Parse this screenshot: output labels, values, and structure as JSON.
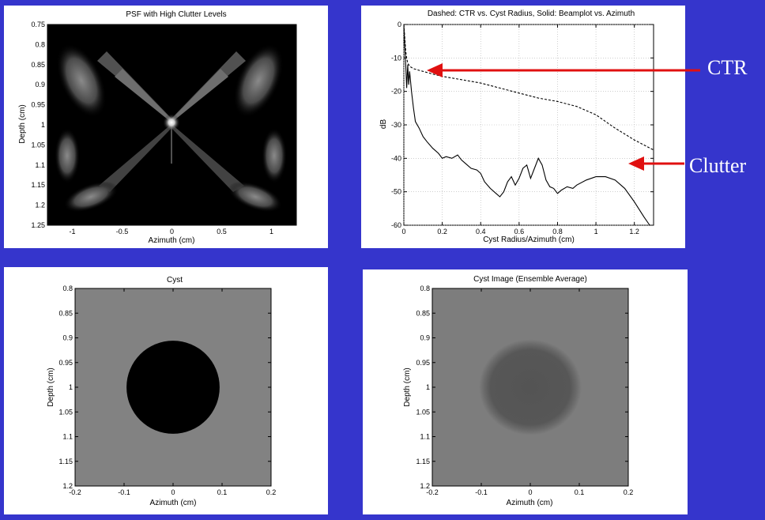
{
  "colors": {
    "slide_background": "#3535cc",
    "annotation_text": "#ffffff",
    "arrow": "#e01010",
    "cyst_background": "#828282",
    "cyst_lesion": "#000000",
    "avg_background": "#7d7d7d",
    "avg_lesion": "#545454",
    "avg_halo": "#6a6a6a"
  },
  "annotations": {
    "ctr_label": "CTR",
    "clutter_label": "Clutter"
  },
  "chart_data": [
    {
      "type": "heatmap",
      "title": "PSF with High Clutter Levels",
      "xlabel": "Azimuth (cm)",
      "ylabel": "Depth (cm)",
      "xlim": [
        -1.25,
        1.25
      ],
      "ylim": [
        0.75,
        1.25
      ],
      "y_reversed": true,
      "xticks": [
        "-1",
        "-0.5",
        "0",
        "0.5",
        "1"
      ],
      "yticks": [
        "0.75",
        "0.8",
        "0.85",
        "0.9",
        "0.95",
        "1",
        "1.05",
        "1.1",
        "1.15",
        "1.2",
        "1.25"
      ],
      "colormap": "gray",
      "peak": {
        "x": 0,
        "y": 1.0
      }
    },
    {
      "type": "line",
      "title": "Dashed: CTR vs. Cyst Radius, Solid: Beamplot vs. Azimuth",
      "xlabel": "Cyst Radius/Azimuth (cm)",
      "ylabel": "dB",
      "xlim": [
        0,
        1.3
      ],
      "ylim": [
        -60,
        0
      ],
      "grid": true,
      "xticks": [
        "0",
        "0.2",
        "0.4",
        "0.6",
        "0.8",
        "1",
        "1.2"
      ],
      "yticks": [
        "0",
        "-10",
        "-20",
        "-30",
        "-40",
        "-50",
        "-60"
      ],
      "series": [
        {
          "style": "dashed",
          "x": [
            0,
            0.005,
            0.01,
            0.015,
            0.02,
            0.03,
            0.05,
            0.08,
            0.1,
            0.15,
            0.2,
            0.3,
            0.4,
            0.5,
            0.6,
            0.7,
            0.8,
            0.9,
            1.0,
            1.1,
            1.2,
            1.3
          ],
          "y": [
            0,
            -4,
            -8,
            -10,
            -11.5,
            -12.5,
            -13.2,
            -13.7,
            -14,
            -14.8,
            -15.5,
            -16.5,
            -17.5,
            -19,
            -20.5,
            -22,
            -23,
            -24.5,
            -27,
            -31,
            -34.5,
            -37.5
          ]
        },
        {
          "style": "solid",
          "x": [
            0,
            0.005,
            0.01,
            0.015,
            0.02,
            0.025,
            0.03,
            0.04,
            0.05,
            0.06,
            0.08,
            0.1,
            0.12,
            0.15,
            0.18,
            0.2,
            0.22,
            0.25,
            0.28,
            0.3,
            0.32,
            0.35,
            0.38,
            0.4,
            0.42,
            0.45,
            0.48,
            0.5,
            0.52,
            0.54,
            0.56,
            0.58,
            0.6,
            0.62,
            0.64,
            0.66,
            0.68,
            0.7,
            0.72,
            0.74,
            0.76,
            0.78,
            0.8,
            0.82,
            0.85,
            0.88,
            0.9,
            0.95,
            1.0,
            1.05,
            1.1,
            1.15,
            1.2,
            1.25,
            1.28
          ],
          "y": [
            0,
            -6,
            -12,
            -19,
            -12,
            -18,
            -14,
            -20,
            -25,
            -29,
            -31,
            -33.5,
            -35,
            -37,
            -38.5,
            -40,
            -39.5,
            -40,
            -39,
            -40.5,
            -41.5,
            -43,
            -43.5,
            -44.5,
            -47,
            -49,
            -50.5,
            -51.5,
            -50,
            -47,
            -45.5,
            -48,
            -46,
            -43,
            -42,
            -46,
            -43,
            -40,
            -42,
            -46.5,
            -48.5,
            -49,
            -50.5,
            -49.5,
            -48.5,
            -49,
            -48,
            -46.5,
            -45.5,
            -45.5,
            -46.5,
            -49,
            -53,
            -57.5,
            -60
          ]
        }
      ]
    },
    {
      "type": "heatmap",
      "title": "Cyst",
      "xlabel": "Azimuth (cm)",
      "ylabel": "Depth (cm)",
      "xlim": [
        -0.2,
        0.2
      ],
      "ylim": [
        0.8,
        1.2
      ],
      "y_reversed": true,
      "xticks": [
        "-0.2",
        "-0.1",
        "0",
        "0.1",
        "0.2"
      ],
      "yticks": [
        "0.8",
        "0.85",
        "0.9",
        "0.95",
        "1",
        "1.05",
        "1.1",
        "1.15",
        "1.2"
      ],
      "lesion": {
        "center_x": 0,
        "center_y": 1.0,
        "radius": 0.095
      }
    },
    {
      "type": "heatmap",
      "title": "Cyst Image (Ensemble Average)",
      "xlabel": "Azimuth (cm)",
      "ylabel": "Depth (cm)",
      "xlim": [
        -0.2,
        0.2
      ],
      "ylim": [
        0.8,
        1.2
      ],
      "y_reversed": true,
      "xticks": [
        "-0.2",
        "-0.1",
        "0",
        "0.1",
        "0.2"
      ],
      "yticks": [
        "0.8",
        "0.85",
        "0.9",
        "0.95",
        "1",
        "1.05",
        "1.1",
        "1.15",
        "1.2"
      ],
      "lesion": {
        "center_x": 0,
        "center_y": 1.0,
        "radius": 0.095
      }
    }
  ]
}
